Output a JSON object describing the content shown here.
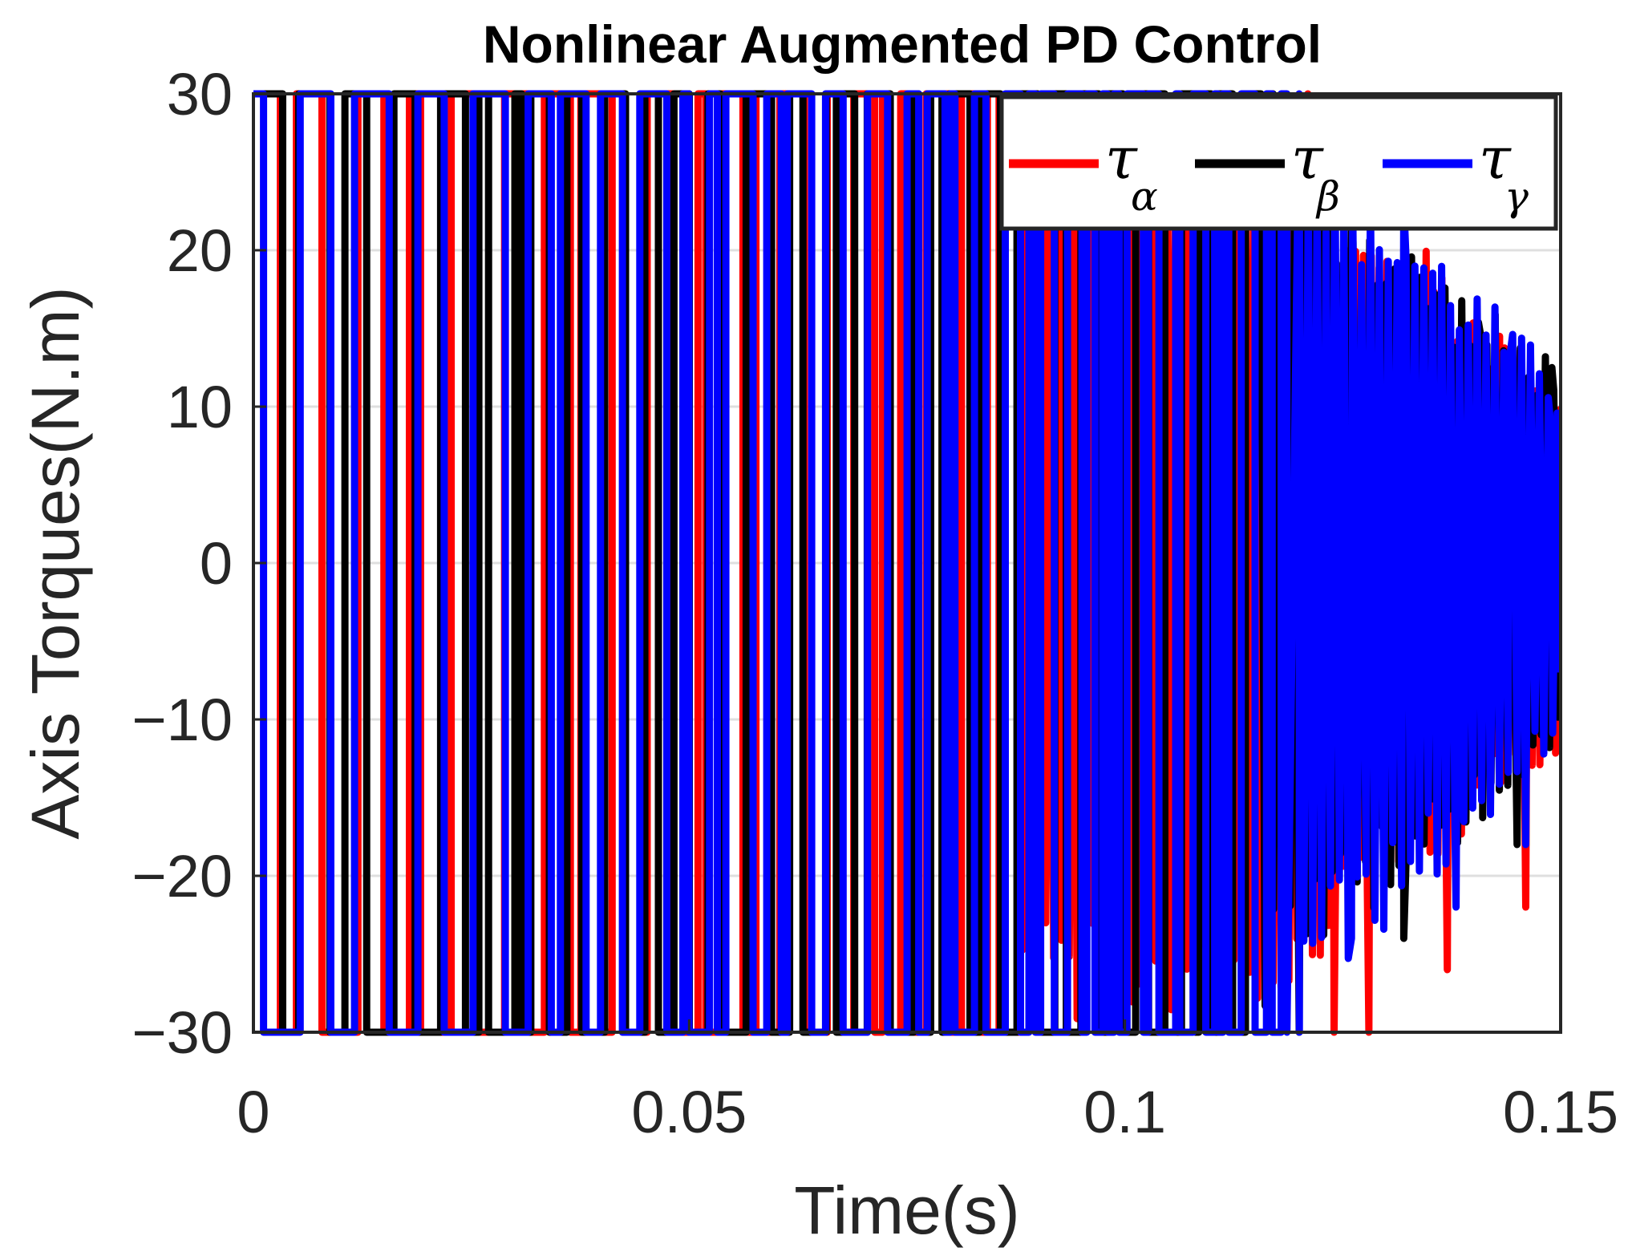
{
  "chart_data": {
    "type": "line",
    "title": "Nonlinear Augmented PD Control",
    "xlabel": "Time(s)",
    "ylabel": "Axis Torques(N.m)",
    "xlim": [
      0,
      0.15
    ],
    "ylim": [
      -30,
      30
    ],
    "x_ticks": [
      0,
      0.05,
      0.1,
      0.15
    ],
    "x_tick_labels": [
      "0",
      "0.05",
      "0.1",
      "0.15"
    ],
    "y_ticks": [
      -30,
      -20,
      -10,
      0,
      10,
      20,
      30
    ],
    "y_tick_labels": [
      "−30",
      "−20",
      "−10",
      "0",
      "10",
      "20",
      "30"
    ],
    "grid": true,
    "legend_position": "top-right",
    "legend_orientation": "horizontal",
    "series": [
      {
        "name": "τ",
        "subscript": "α",
        "color": "#ff0000",
        "saturation": 30,
        "saturated_until": 0.087,
        "envelope": [
          [
            0.087,
            30
          ],
          [
            0.12,
            28
          ],
          [
            0.125,
            22
          ],
          [
            0.135,
            20
          ],
          [
            0.145,
            14
          ],
          [
            0.15,
            12
          ]
        ],
        "peak_points": [
          {
            "x": 0.121,
            "y": 30
          },
          {
            "x": 0.124,
            "y": -30
          },
          {
            "x": 0.128,
            "y": -30
          },
          {
            "x": 0.134,
            "y": 16
          },
          {
            "x": 0.137,
            "y": -26
          },
          {
            "x": 0.143,
            "y": 14.5
          },
          {
            "x": 0.146,
            "y": -22
          },
          {
            "x": 0.15,
            "y": 5
          }
        ]
      },
      {
        "name": "τ",
        "subscript": "β",
        "color": "#000000",
        "saturation": 30,
        "saturated_until": 0.115,
        "envelope": [
          [
            0.115,
            30
          ],
          [
            0.12,
            26
          ],
          [
            0.13,
            22
          ],
          [
            0.14,
            17
          ],
          [
            0.15,
            13
          ]
        ],
        "peak_points": [
          {
            "x": 0.117,
            "y": 30
          },
          {
            "x": 0.12,
            "y": -30
          },
          {
            "x": 0.126,
            "y": 24
          },
          {
            "x": 0.132,
            "y": -24
          },
          {
            "x": 0.141,
            "y": 14
          },
          {
            "x": 0.145,
            "y": -18
          },
          {
            "x": 0.149,
            "y": 12.5
          },
          {
            "x": 0.15,
            "y": -7
          }
        ]
      },
      {
        "name": "τ",
        "subscript": "γ",
        "color": "#0000ff",
        "saturation": 30,
        "saturated_until": 0.12,
        "envelope": [
          [
            0.12,
            30
          ],
          [
            0.125,
            26
          ],
          [
            0.135,
            21
          ],
          [
            0.145,
            15
          ],
          [
            0.15,
            12
          ]
        ],
        "peak_points": [
          {
            "x": 0.12,
            "y": 30
          },
          {
            "x": 0.126,
            "y": -24
          },
          {
            "x": 0.132,
            "y": 23
          },
          {
            "x": 0.138,
            "y": -22
          },
          {
            "x": 0.144,
            "y": 12.5
          },
          {
            "x": 0.146,
            "y": -18
          },
          {
            "x": 0.149,
            "y": 8
          },
          {
            "x": 0.15,
            "y": -7
          }
        ]
      }
    ]
  }
}
